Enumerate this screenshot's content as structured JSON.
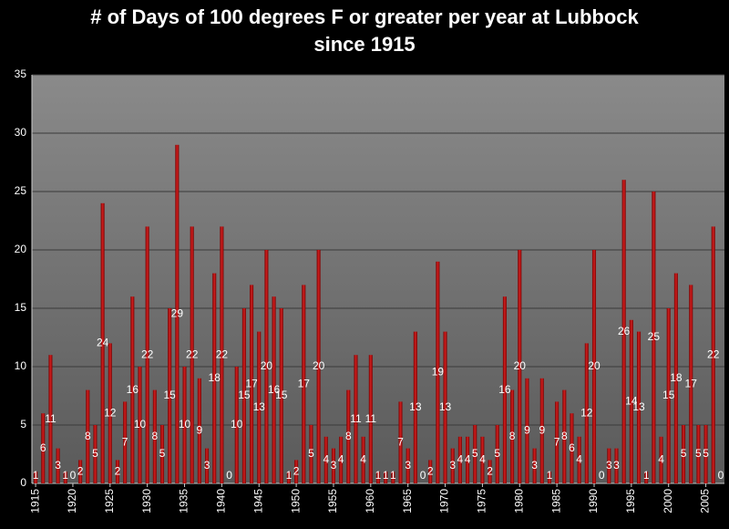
{
  "chart_data": {
    "type": "bar",
    "title": [
      "# of Days  of 100 degrees F or greater per year at Lubbock",
      "since 1915"
    ],
    "x": [
      1915,
      1916,
      1917,
      1918,
      1919,
      1920,
      1921,
      1922,
      1923,
      1924,
      1925,
      1926,
      1927,
      1928,
      1929,
      1930,
      1931,
      1932,
      1933,
      1934,
      1935,
      1936,
      1937,
      1938,
      1939,
      1940,
      1941,
      1942,
      1943,
      1944,
      1945,
      1946,
      1947,
      1948,
      1949,
      1950,
      1951,
      1952,
      1953,
      1954,
      1955,
      1956,
      1957,
      1958,
      1959,
      1960,
      1961,
      1962,
      1963,
      1964,
      1965,
      1966,
      1967,
      1968,
      1969,
      1970,
      1971,
      1972,
      1973,
      1974,
      1975,
      1976,
      1977,
      1978,
      1979,
      1980,
      1981,
      1982,
      1983,
      1984,
      1985,
      1986,
      1987,
      1988,
      1989,
      1990,
      1991,
      1992,
      1993,
      1994,
      1995,
      1996,
      1997,
      1998,
      1999,
      2000,
      2001,
      2002,
      2003,
      2004,
      2005,
      2006,
      2007
    ],
    "values": [
      1,
      6,
      11,
      3,
      1,
      0,
      2,
      8,
      5,
      24,
      12,
      2,
      7,
      16,
      10,
      22,
      8,
      5,
      15,
      29,
      10,
      22,
      9,
      3,
      18,
      22,
      0,
      10,
      15,
      17,
      13,
      20,
      16,
      15,
      1,
      2,
      17,
      5,
      20,
      4,
      3,
      4,
      8,
      11,
      4,
      11,
      1,
      1,
      1,
      7,
      3,
      13,
      0,
      2,
      19,
      13,
      3,
      4,
      4,
      5,
      4,
      2,
      5,
      16,
      8,
      20,
      9,
      3,
      9,
      1,
      7,
      8,
      6,
      4,
      12,
      20,
      0,
      3,
      3,
      26,
      14,
      13,
      1,
      25,
      4,
      15,
      18,
      5,
      17,
      5,
      5,
      22,
      0
    ],
    "color": "#c00000",
    "xlim": [
      1914.5,
      2007.5
    ],
    "xticks": [
      1915,
      1920,
      1925,
      1930,
      1935,
      1940,
      1945,
      1950,
      1955,
      1960,
      1965,
      1970,
      1975,
      1980,
      1985,
      1990,
      1995,
      2000,
      2005
    ],
    "ylim": [
      0,
      35
    ],
    "yticks": [
      0,
      5,
      10,
      15,
      20,
      25,
      30,
      35
    ],
    "grid": true
  }
}
